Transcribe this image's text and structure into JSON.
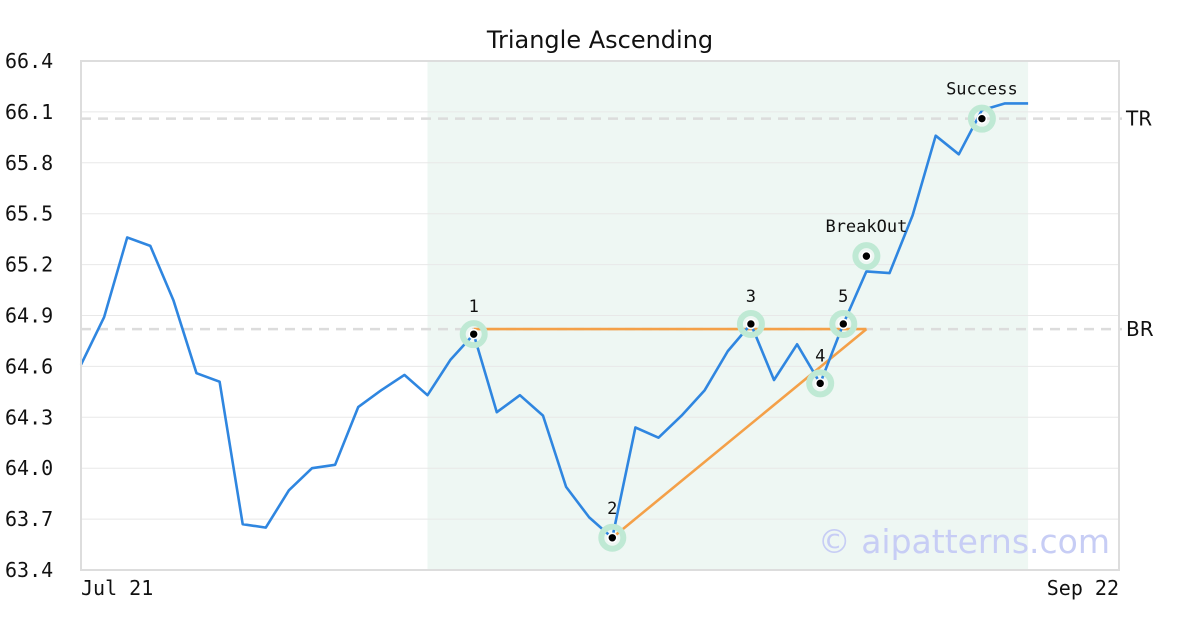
{
  "chart_data": {
    "type": "line",
    "title": "Triangle Ascending",
    "ylim": [
      63.4,
      66.4
    ],
    "yticks": [
      "66.4",
      "66.1",
      "65.8",
      "65.5",
      "65.2",
      "64.9",
      "64.6",
      "64.3",
      "64.0",
      "63.7",
      "63.4"
    ],
    "x_labels": {
      "start": "Jul 21",
      "end": "Sep 22"
    },
    "grid": true,
    "series": [
      {
        "color": "#2f86e0",
        "values": [
          64.61,
          64.89,
          65.36,
          65.31,
          64.99,
          64.56,
          64.51,
          63.67,
          63.65,
          63.87,
          64.0,
          64.02,
          64.36,
          64.46,
          64.55,
          64.43,
          64.64,
          64.79,
          64.33,
          64.43,
          64.31,
          63.89,
          63.71,
          63.59,
          64.24,
          64.18,
          64.31,
          64.46,
          64.69,
          64.85,
          64.52,
          64.73,
          64.5,
          64.85,
          65.16,
          65.15,
          65.49,
          65.96,
          65.85,
          66.11,
          66.15,
          66.15
        ]
      }
    ],
    "pattern_region": {
      "start_index": 15,
      "end_index": 41,
      "color": "#eef7f3"
    },
    "reference_lines": [
      {
        "label": "TR",
        "value": 66.06
      },
      {
        "label": "BR",
        "value": 64.82
      }
    ],
    "points": [
      {
        "label": "1",
        "index": 17,
        "value": 64.79
      },
      {
        "label": "2",
        "index": 23,
        "value": 63.59
      },
      {
        "label": "3",
        "index": 29,
        "value": 64.85
      },
      {
        "label": "4",
        "index": 32,
        "value": 64.5
      },
      {
        "label": "5",
        "index": 33,
        "value": 64.85
      },
      {
        "label": "BreakOut",
        "index": 34,
        "value": 65.25
      },
      {
        "label": "Success",
        "index": 39,
        "value": 66.06
      }
    ],
    "triangle": {
      "color": "#f4a048",
      "resistance": [
        {
          "index": 17,
          "value": 64.82
        },
        {
          "index": 34,
          "value": 64.82
        }
      ],
      "support": [
        {
          "index": 23,
          "value": 63.59
        },
        {
          "index": 34,
          "value": 64.82
        }
      ]
    }
  },
  "watermark": "© aipatterns.com"
}
